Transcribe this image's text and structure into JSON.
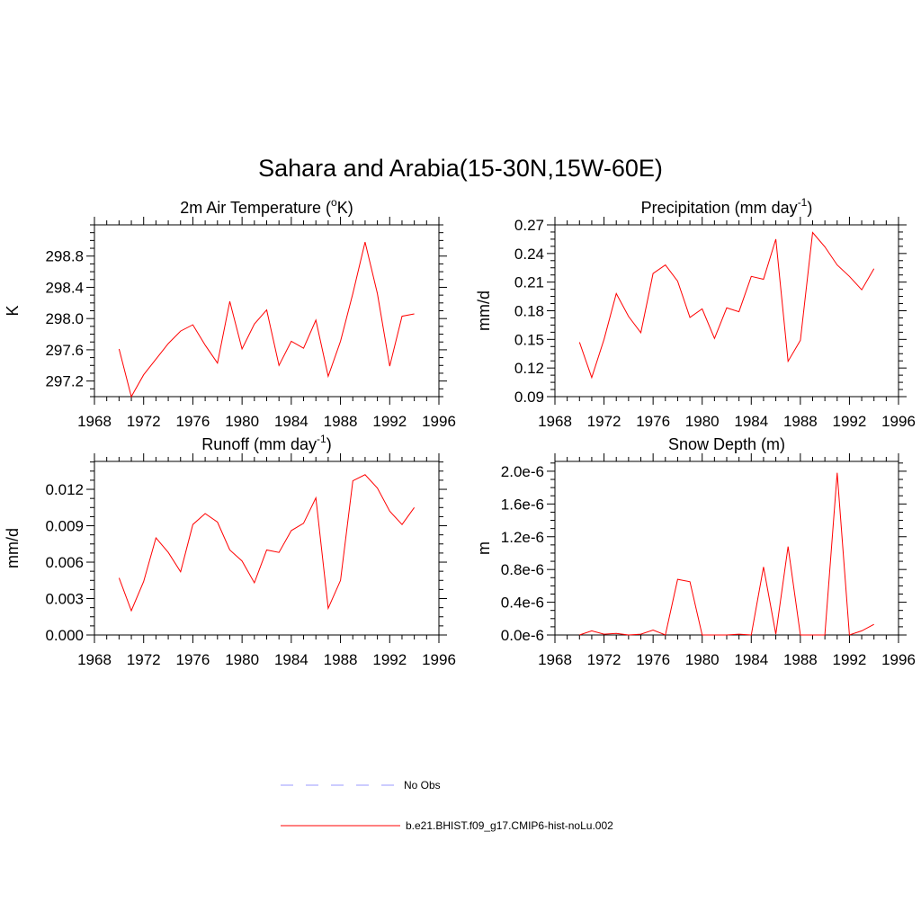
{
  "figure": {
    "title": "Sahara and Arabia(15-30N,15W-60E)"
  },
  "chart_data": [
    {
      "type": "line",
      "title_main": "2m Air Temperature (",
      "title_sup": "o",
      "title_tail": "K)",
      "ylabel": "K",
      "xlabel": "",
      "xlim": [
        1968,
        1996
      ],
      "ylim": [
        297.0,
        299.2
      ],
      "xticks": [
        "1968",
        "1972",
        "1976",
        "1980",
        "1984",
        "1988",
        "1992",
        "1996"
      ],
      "yticks": [
        "297.2",
        "297.6",
        "298.0",
        "298.4",
        "298.8"
      ],
      "ytick_values": [
        297.2,
        297.6,
        298.0,
        298.4,
        298.8
      ],
      "x": [
        1970,
        1971,
        1972,
        1973,
        1974,
        1975,
        1976,
        1977,
        1978,
        1979,
        1980,
        1981,
        1982,
        1983,
        1984,
        1985,
        1986,
        1987,
        1988,
        1989,
        1990,
        1991,
        1992,
        1993,
        1994
      ],
      "series": [
        {
          "values": [
            297.61,
            297.0,
            297.28,
            297.48,
            297.68,
            297.84,
            297.92,
            297.66,
            297.43,
            298.22,
            297.61,
            297.93,
            298.11,
            297.4,
            297.71,
            297.62,
            297.98,
            297.26,
            297.71,
            298.32,
            298.98,
            298.32,
            297.39,
            298.03,
            298.06
          ]
        }
      ]
    },
    {
      "type": "line",
      "title_main": "Precipitation (mm day",
      "title_sup": "-1",
      "title_tail": ")",
      "ylabel": "mm/d",
      "xlabel": "",
      "xlim": [
        1968,
        1996
      ],
      "ylim": [
        0.09,
        0.27
      ],
      "xticks": [
        "1968",
        "1972",
        "1976",
        "1980",
        "1984",
        "1988",
        "1992",
        "1996"
      ],
      "yticks": [
        "0.09",
        "0.12",
        "0.15",
        "0.18",
        "0.21",
        "0.24",
        "0.27"
      ],
      "ytick_values": [
        0.09,
        0.12,
        0.15,
        0.18,
        0.21,
        0.24,
        0.27
      ],
      "x": [
        1970,
        1971,
        1972,
        1973,
        1974,
        1975,
        1976,
        1977,
        1978,
        1979,
        1980,
        1981,
        1982,
        1983,
        1984,
        1985,
        1986,
        1987,
        1988,
        1989,
        1990,
        1991,
        1992,
        1993,
        1994
      ],
      "series": [
        {
          "values": [
            0.147,
            0.11,
            0.15,
            0.198,
            0.174,
            0.157,
            0.219,
            0.228,
            0.211,
            0.173,
            0.182,
            0.151,
            0.183,
            0.179,
            0.216,
            0.213,
            0.255,
            0.127,
            0.149,
            0.262,
            0.247,
            0.228,
            0.216,
            0.202,
            0.224
          ]
        }
      ]
    },
    {
      "type": "line",
      "title_main": "Runoff (mm day",
      "title_sup": "-1",
      "title_tail": ")",
      "ylabel": "mm/d",
      "xlabel": "",
      "xlim": [
        1968,
        1996
      ],
      "ylim": [
        0.0,
        0.0143
      ],
      "xticks": [
        "1968",
        "1972",
        "1976",
        "1980",
        "1984",
        "1988",
        "1992",
        "1996"
      ],
      "yticks": [
        "0.000",
        "0.003",
        "0.006",
        "0.009",
        "0.012"
      ],
      "ytick_values": [
        0.0,
        0.003,
        0.006,
        0.009,
        0.012
      ],
      "x": [
        1970,
        1971,
        1972,
        1973,
        1974,
        1975,
        1976,
        1977,
        1978,
        1979,
        1980,
        1981,
        1982,
        1983,
        1984,
        1985,
        1986,
        1987,
        1988,
        1989,
        1990,
        1991,
        1992,
        1993,
        1994
      ],
      "series": [
        {
          "values": [
            0.0047,
            0.002,
            0.0044,
            0.008,
            0.0068,
            0.0052,
            0.0091,
            0.01,
            0.0093,
            0.007,
            0.0061,
            0.0043,
            0.007,
            0.0068,
            0.0086,
            0.0092,
            0.0113,
            0.0022,
            0.0045,
            0.0127,
            0.0132,
            0.0121,
            0.0102,
            0.0091,
            0.0105
          ]
        }
      ]
    },
    {
      "type": "line",
      "title_main": "Snow Depth (m)",
      "title_sup": "",
      "title_tail": "",
      "ylabel": "m",
      "xlabel": "",
      "xlim": [
        1968,
        1996
      ],
      "ylim": [
        0.0,
        2.12e-06
      ],
      "xticks": [
        "1968",
        "1972",
        "1976",
        "1980",
        "1984",
        "1988",
        "1992",
        "1996"
      ],
      "yticks": [
        "0.0e-6",
        "0.4e-6",
        "0.8e-6",
        "1.2e-6",
        "1.6e-6",
        "2.0e-6"
      ],
      "ytick_values": [
        0.0,
        4e-07,
        8e-07,
        1.2e-06,
        1.6e-06,
        2e-06
      ],
      "x": [
        1970,
        1971,
        1972,
        1973,
        1974,
        1975,
        1976,
        1977,
        1978,
        1979,
        1980,
        1981,
        1982,
        1983,
        1984,
        1985,
        1986,
        1987,
        1988,
        1989,
        1990,
        1991,
        1992,
        1993,
        1994
      ],
      "series": [
        {
          "values": [
            0.0,
            5e-08,
            1e-08,
            2e-08,
            0.0,
            1e-08,
            6e-08,
            0.0,
            6.8e-07,
            6.5e-07,
            0.0,
            0.0,
            0.0,
            1e-08,
            0.0,
            8.3e-07,
            1e-08,
            1.08e-06,
            0.0,
            0.0,
            0.0,
            1.98e-06,
            0.0,
            5e-08,
            1.3e-07
          ]
        }
      ]
    }
  ],
  "legend": {
    "items": [
      {
        "label": "No Obs",
        "color": "#9999ff",
        "dash": true
      },
      {
        "label": "b.e21.BHIST.f09_g17.CMIP6-hist-noLu.002",
        "color": "#ff0000",
        "dash": false
      }
    ]
  },
  "colors": {
    "series": "#ff0000",
    "obs": "#9999ff",
    "axis": "#000000"
  }
}
